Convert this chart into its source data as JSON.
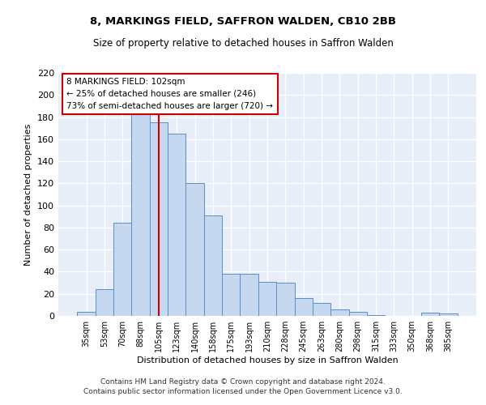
{
  "title": "8, MARKINGS FIELD, SAFFRON WALDEN, CB10 2BB",
  "subtitle": "Size of property relative to detached houses in Saffron Walden",
  "xlabel": "Distribution of detached houses by size in Saffron Walden",
  "ylabel": "Number of detached properties",
  "bar_labels": [
    "35sqm",
    "53sqm",
    "70sqm",
    "88sqm",
    "105sqm",
    "123sqm",
    "140sqm",
    "158sqm",
    "175sqm",
    "193sqm",
    "210sqm",
    "228sqm",
    "245sqm",
    "263sqm",
    "280sqm",
    "298sqm",
    "315sqm",
    "333sqm",
    "350sqm",
    "368sqm",
    "385sqm"
  ],
  "bar_values": [
    4,
    24,
    84,
    184,
    175,
    165,
    120,
    91,
    38,
    38,
    31,
    30,
    16,
    12,
    6,
    4,
    1,
    0,
    0,
    3,
    2
  ],
  "bar_color": "#c5d8ef",
  "bar_edge_color": "#5b8fc9",
  "ylim": [
    0,
    220
  ],
  "yticks": [
    0,
    20,
    40,
    60,
    80,
    100,
    120,
    140,
    160,
    180,
    200,
    220
  ],
  "vline_x_index": 4,
  "vline_color": "#cc0000",
  "annotation_title": "8 MARKINGS FIELD: 102sqm",
  "annotation_line1": "← 25% of detached houses are smaller (246)",
  "annotation_line2": "73% of semi-detached houses are larger (720) →",
  "annotation_box_color": "#ffffff",
  "annotation_box_edge_color": "#cc0000",
  "footer_line1": "Contains HM Land Registry data © Crown copyright and database right 2024.",
  "footer_line2": "Contains public sector information licensed under the Open Government Licence v3.0.",
  "background_color": "#e8eef8",
  "grid_color": "#ffffff",
  "fig_bg_color": "#ffffff"
}
